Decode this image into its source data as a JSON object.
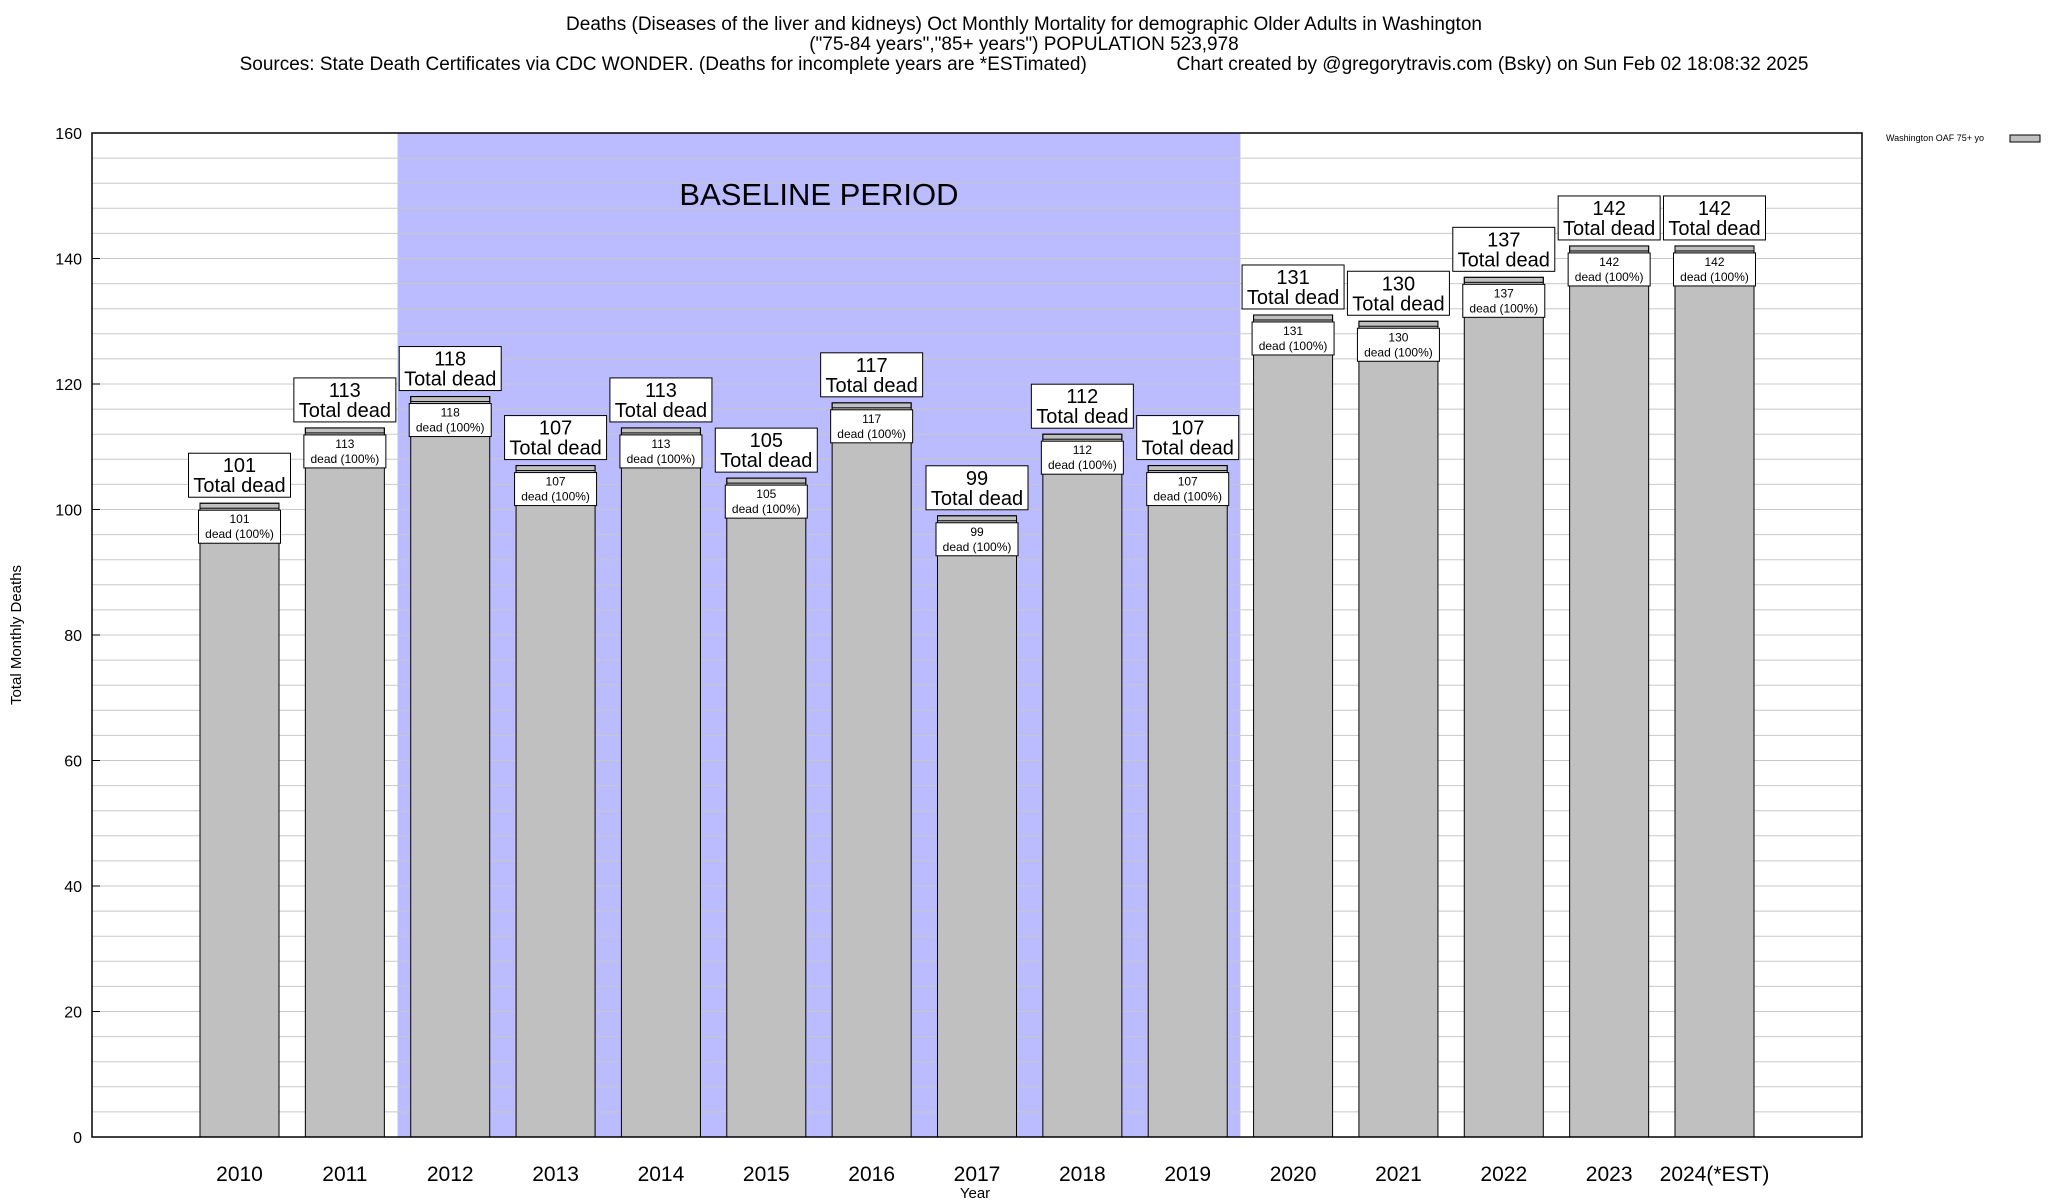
{
  "header": {
    "title_line1": "Deaths (Diseases of the liver and kidneys) Oct Monthly Mortality for demographic Older Adults in Washington",
    "title_line2": "(\"75-84 years\",\"85+ years\") POPULATION 523,978",
    "title_line3": "Sources: State Death Certificates via CDC WONDER. (Deaths for incomplete years are *ESTimated)                 Chart created by @gregorytravis.com (Bsky) on Sun Feb 02 18:08:32 2025"
  },
  "chart_data": {
    "type": "bar",
    "categories": [
      "2010",
      "2011",
      "2012",
      "2013",
      "2014",
      "2015",
      "2016",
      "2017",
      "2018",
      "2019",
      "2020",
      "2021",
      "2022",
      "2023",
      "2024(*EST)"
    ],
    "series": [
      {
        "name": "Washington OAF 75+ yo",
        "values": [
          101,
          113,
          118,
          107,
          113,
          105,
          117,
          99,
          112,
          107,
          131,
          130,
          137,
          142,
          142
        ]
      }
    ],
    "xlabel": "Year",
    "ylabel": "Total Monthly Deaths",
    "ylim": [
      0,
      160
    ],
    "yticks": [
      0,
      20,
      40,
      60,
      80,
      100,
      120,
      140,
      160
    ],
    "minor_gridline_step": 4,
    "baseline": {
      "label": "BASELINE PERIOD",
      "start": "2012",
      "end": "2019"
    },
    "annotation_total_suffix": "Total dead",
    "annotation_dead_suffix": "dead (100%)",
    "legend_position": "top-right",
    "colors": {
      "bar": "#c0c0c0",
      "baseline": "#bbbbff",
      "grid": "#c8c8c8",
      "axis": "#000000"
    }
  }
}
